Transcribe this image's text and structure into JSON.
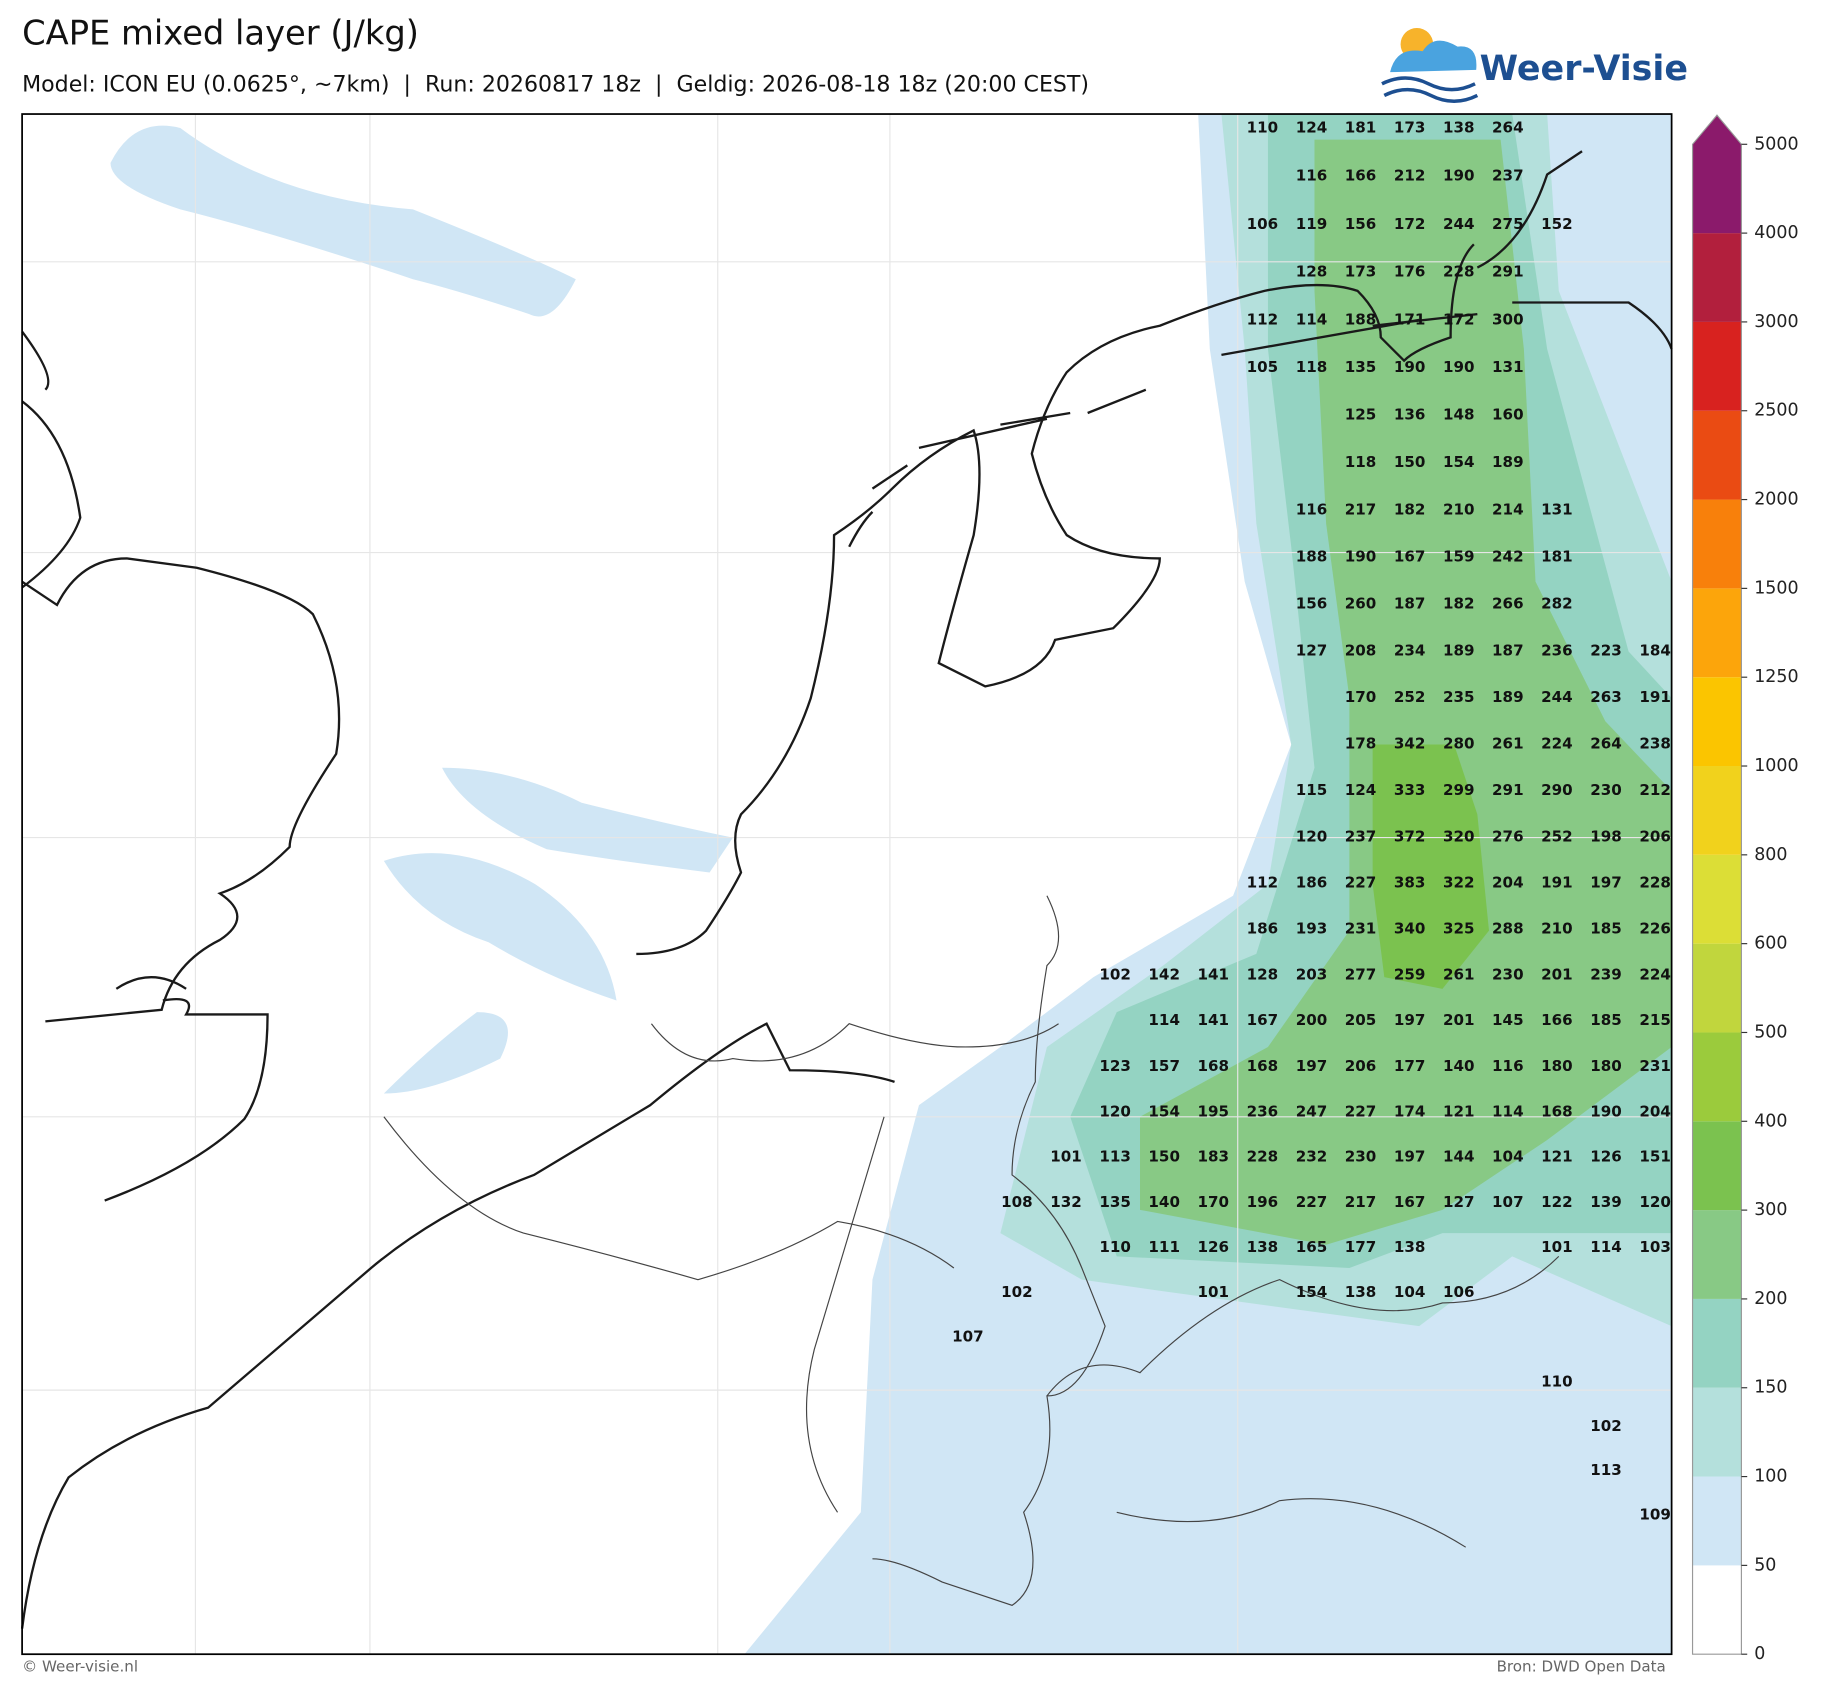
{
  "header": {
    "title": "CAPE mixed layer (J/kg)",
    "subtitle": "Model: ICON EU (0.0625°, ~7km)  |  Run: 20260817 18z  |  Geldig: 2026-08-18 18z (20:00 CEST)"
  },
  "logo": {
    "text": "Weer-Visie"
  },
  "map": {
    "grid_labels": [
      [
        null,
        null,
        null,
        null,
        null,
        null,
        110,
        124,
        181,
        173,
        138,
        264,
        null,
        null,
        null
      ],
      [
        null,
        null,
        null,
        null,
        null,
        null,
        null,
        116,
        166,
        212,
        190,
        237,
        null,
        null,
        null
      ],
      [
        null,
        null,
        null,
        null,
        null,
        null,
        106,
        119,
        156,
        172,
        244,
        275,
        152,
        null,
        null
      ],
      [
        null,
        null,
        null,
        null,
        null,
        null,
        null,
        128,
        173,
        176,
        228,
        291,
        null,
        null,
        null
      ],
      [
        null,
        null,
        null,
        null,
        null,
        null,
        112,
        114,
        188,
        171,
        172,
        300,
        null,
        null,
        null
      ],
      [
        null,
        null,
        null,
        null,
        null,
        null,
        105,
        118,
        135,
        190,
        190,
        131,
        null,
        null,
        null
      ],
      [
        null,
        null,
        null,
        null,
        null,
        null,
        null,
        null,
        125,
        136,
        148,
        160,
        null,
        null,
        null
      ],
      [
        null,
        null,
        null,
        null,
        null,
        null,
        null,
        null,
        118,
        150,
        154,
        189,
        null,
        null,
        null
      ],
      [
        null,
        null,
        null,
        null,
        null,
        null,
        null,
        116,
        217,
        182,
        210,
        214,
        131,
        null,
        null
      ],
      [
        null,
        null,
        null,
        null,
        null,
        null,
        null,
        188,
        190,
        167,
        159,
        242,
        181,
        null,
        null
      ],
      [
        null,
        null,
        null,
        null,
        null,
        null,
        null,
        156,
        260,
        187,
        182,
        266,
        282,
        null,
        null
      ],
      [
        null,
        null,
        null,
        null,
        null,
        null,
        null,
        127,
        208,
        234,
        189,
        187,
        236,
        223,
        184
      ],
      [
        null,
        null,
        null,
        null,
        null,
        null,
        null,
        null,
        170,
        252,
        235,
        189,
        244,
        263,
        191
      ],
      [
        null,
        null,
        null,
        null,
        null,
        null,
        null,
        null,
        178,
        342,
        280,
        261,
        224,
        264,
        238
      ],
      [
        null,
        null,
        null,
        null,
        null,
        null,
        null,
        115,
        124,
        333,
        299,
        291,
        290,
        230,
        212
      ],
      [
        null,
        null,
        null,
        null,
        null,
        null,
        null,
        120,
        237,
        372,
        320,
        276,
        252,
        198,
        206
      ],
      [
        null,
        null,
        null,
        null,
        null,
        null,
        112,
        186,
        227,
        383,
        322,
        204,
        191,
        197,
        228
      ],
      [
        null,
        null,
        null,
        null,
        null,
        null,
        186,
        193,
        231,
        340,
        325,
        288,
        210,
        185,
        226
      ],
      [
        null,
        null,
        null,
        102,
        142,
        141,
        128,
        203,
        277,
        259,
        261,
        230,
        201,
        239,
        224
      ],
      [
        null,
        null,
        null,
        null,
        114,
        141,
        167,
        200,
        205,
        197,
        201,
        145,
        166,
        185,
        215
      ],
      [
        null,
        null,
        null,
        123,
        157,
        168,
        168,
        197,
        206,
        177,
        140,
        116,
        180,
        180,
        231
      ],
      [
        null,
        null,
        null,
        120,
        154,
        195,
        236,
        247,
        227,
        174,
        121,
        114,
        168,
        190,
        204
      ],
      [
        null,
        null,
        101,
        113,
        150,
        183,
        228,
        232,
        230,
        197,
        144,
        104,
        121,
        126,
        151
      ],
      [
        null,
        108,
        132,
        135,
        140,
        170,
        196,
        227,
        217,
        167,
        127,
        107,
        122,
        139,
        120
      ],
      [
        null,
        null,
        null,
        110,
        111,
        126,
        138,
        165,
        177,
        138,
        null,
        null,
        101,
        114,
        103
      ],
      [
        null,
        102,
        null,
        null,
        null,
        101,
        null,
        154,
        138,
        104,
        106,
        null,
        null,
        null,
        null
      ],
      [
        107,
        null,
        null,
        null,
        null,
        null,
        null,
        null,
        null,
        null,
        null,
        null,
        null,
        null,
        null
      ],
      [
        null,
        null,
        null,
        null,
        null,
        null,
        null,
        null,
        null,
        null,
        null,
        null,
        110,
        null,
        null
      ],
      [
        null,
        null,
        null,
        null,
        null,
        null,
        null,
        null,
        null,
        null,
        null,
        null,
        null,
        102,
        null
      ],
      [
        null,
        null,
        null,
        null,
        null,
        null,
        null,
        null,
        null,
        null,
        null,
        null,
        null,
        113,
        null
      ],
      [
        null,
        null,
        null,
        null,
        null,
        null,
        null,
        null,
        null,
        null,
        null,
        null,
        null,
        null,
        109
      ]
    ]
  },
  "colorbar": {
    "levels": [
      0,
      50,
      100,
      150,
      200,
      300,
      400,
      500,
      600,
      800,
      1000,
      1250,
      1500,
      2000,
      2500,
      3000,
      4000,
      5000
    ],
    "colors": [
      "#ffffff",
      "#d0e6f5",
      "#b4e0dc",
      "#94d3c2",
      "#88c985",
      "#7bc24f",
      "#9bcb3c",
      "#c1d63d",
      "#dcde36",
      "#f1d21c",
      "#fbc500",
      "#fca50b",
      "#f8800b",
      "#ea4b13",
      "#d8221f",
      "#b21f3d",
      "#8b1a6b"
    ]
  },
  "footer": {
    "left": "© Weer-visie.nl",
    "right": "Bron: DWD Open Data"
  }
}
